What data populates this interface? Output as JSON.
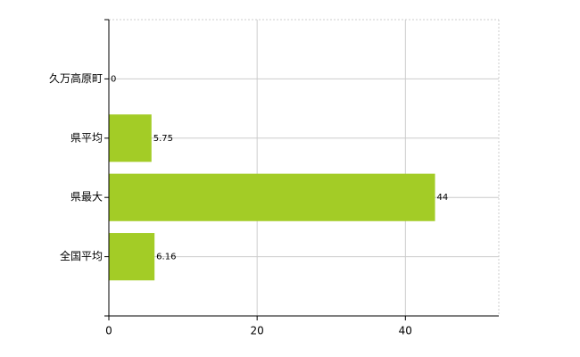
{
  "chart_data": {
    "type": "bar",
    "orientation": "horizontal",
    "categories": [
      "久万高原町",
      "県平均",
      "県最大",
      "全国平均"
    ],
    "values": [
      0,
      5.75,
      44,
      6.16
    ],
    "color": "#a3cc26",
    "xlim": [
      0,
      52.6
    ],
    "xticks": [
      0,
      20,
      40
    ],
    "grid": true
  }
}
